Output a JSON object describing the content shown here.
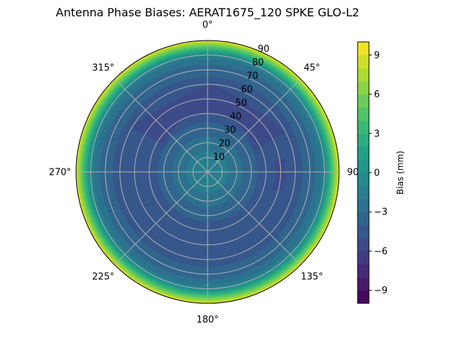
{
  "chart_data": {
    "type": "heatmap",
    "subtype": "polar-contour",
    "title": "Antenna Phase Biases: AERAT1675_120   SPKE GLO-L2",
    "angular_ticks": [
      "0°",
      "45°",
      "90°",
      "135°",
      "180°",
      "225°",
      "270°",
      "315°"
    ],
    "radial_ticks": [
      "10",
      "20",
      "30",
      "40",
      "50",
      "60",
      "70",
      "80",
      "90"
    ],
    "radial_range": [
      0,
      90
    ],
    "colorbar": {
      "label": "Bias (mm)",
      "range": [
        -10,
        10
      ],
      "levels_step": 1,
      "ticks": [
        "9",
        "6",
        "3",
        "0",
        "−3",
        "−6",
        "−9"
      ],
      "tick_values": [
        9,
        6,
        3,
        0,
        -3,
        -6,
        -9
      ],
      "colormap": "viridis"
    },
    "radial_profile": {
      "zenith_deg": [
        0,
        5,
        10,
        15,
        20,
        25,
        30,
        35,
        40,
        45,
        50,
        55,
        60,
        65,
        70,
        75,
        78,
        80,
        82,
        84,
        86,
        88,
        90
      ],
      "bias_mm": [
        -1.2,
        -1.3,
        -1.6,
        -2.1,
        -2.6,
        -3.1,
        -3.6,
        -4.1,
        -4.3,
        -4.5,
        -4.5,
        -4.5,
        -4.3,
        -4.0,
        -3.6,
        -2.8,
        -1.8,
        -0.8,
        1.0,
        3.0,
        5.0,
        7.0,
        9.5
      ]
    },
    "regions": [
      {
        "bias_mm": -5.5,
        "azimuth_deg": [
          300,
          65
        ],
        "zenith_deg": [
          35,
          60
        ]
      },
      {
        "bias_mm": -5.5,
        "azimuth_deg": [
          80,
          105
        ],
        "zenith_deg": [
          45,
          55
        ]
      }
    ],
    "grid": true
  }
}
